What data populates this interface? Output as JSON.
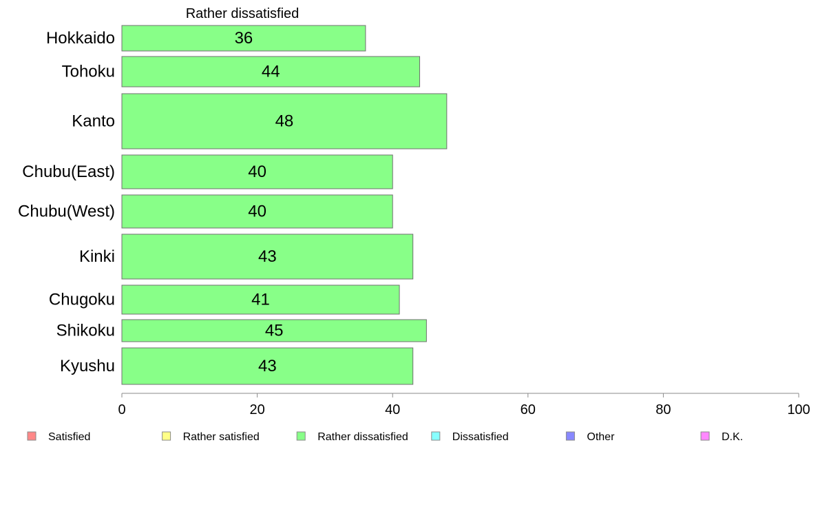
{
  "chart_data": {
    "type": "bar",
    "orientation": "horizontal",
    "title": "Rather dissatisfied",
    "categories": [
      "Hokkaido",
      "Tohoku",
      "Kanto",
      "Chubu(East)",
      "Chubu(West)",
      "Kinki",
      "Chugoku",
      "Shikoku",
      "Kyushu"
    ],
    "series": [
      {
        "name": "Rather dissatisfied",
        "values": [
          36,
          44,
          48,
          40,
          40,
          43,
          41,
          45,
          43
        ],
        "color": "#88ff88"
      }
    ],
    "xlim": [
      0,
      100
    ],
    "xticks": [
      "0",
      "20",
      "40",
      "60",
      "80",
      "100"
    ],
    "grid": false,
    "legend": {
      "placement": "bottom",
      "entries": [
        {
          "label": "Satisfied",
          "color": "#ff8888"
        },
        {
          "label": "Rather satisfied",
          "color": "#ffff88"
        },
        {
          "label": "Rather dissatisfied",
          "color": "#88ff88"
        },
        {
          "label": "Dissatisfied",
          "color": "#88ffff"
        },
        {
          "label": "Other",
          "color": "#8888ff"
        },
        {
          "label": "D.K.",
          "color": "#ff88ff"
        }
      ]
    }
  }
}
